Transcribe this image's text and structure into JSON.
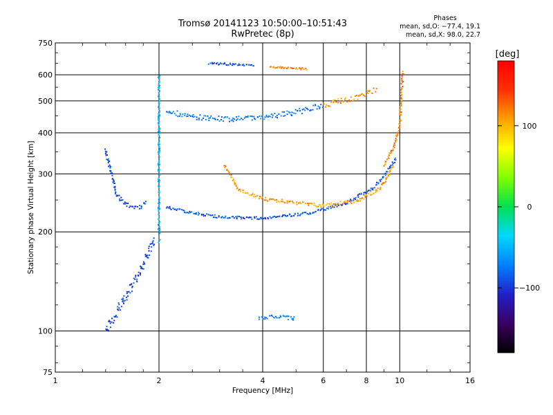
{
  "chart_data": {
    "type": "scatter",
    "title": "Tromsø 20141123 10:50:00–10:51:43",
    "subtitle": "RwPretec (8p)",
    "xlabel": "Frequency [MHz]",
    "ylabel": "Stationary phase Virtual Height [km]",
    "x_scale": "log",
    "y_scale": "log",
    "xlim": [
      1,
      16
    ],
    "ylim": [
      75,
      750
    ],
    "x_ticks": [
      1,
      2,
      4,
      6,
      8,
      10,
      16
    ],
    "x_tick_labels": [
      "1",
      "2",
      "4",
      "6",
      "8",
      "10",
      "16"
    ],
    "y_ticks": [
      75,
      100,
      200,
      300,
      400,
      500,
      600,
      750
    ],
    "y_tick_labels": [
      "75",
      "100",
      "200",
      "300",
      "400",
      "500",
      "600",
      "750"
    ],
    "grid": true,
    "phase_box": {
      "heading": "Phases",
      "line_o": "mean, sd,O: −77.4, 19.1",
      "line_x": "mean, sd,X:  98.0, 22.7"
    },
    "colorbar": {
      "label": "[deg]",
      "range": [
        -180,
        180
      ],
      "ticks": [
        100,
        0,
        -100
      ],
      "tick_labels": [
        "100",
        "0",
        "−100"
      ],
      "colors": [
        "#000000",
        "#3a0060",
        "#2020c8",
        "#0080ff",
        "#00d8ff",
        "#00e050",
        "#80ff00",
        "#ffff00",
        "#ffa000",
        "#ff3000",
        "#ff0000"
      ]
    },
    "traces": [
      {
        "x": [
          2.1,
          2.4,
          3.0,
          3.8,
          5.0,
          6.0
        ],
        "y": [
          465,
          450,
          440,
          442,
          462,
          485
        ],
        "phase": -75,
        "spread": 8
      },
      {
        "x": [
          6.0,
          6.8,
          7.8,
          8.6
        ],
        "y": [
          485,
          500,
          520,
          545
        ],
        "phase": 110,
        "spread": 8
      },
      {
        "x": [
          2.1,
          2.5,
          3.0,
          4.0,
          5.5,
          7.0,
          8.5,
          9.8
        ],
        "y": [
          238,
          228,
          222,
          220,
          228,
          245,
          275,
          335
        ],
        "phase": -90,
        "spread": 4
      },
      {
        "x": [
          3.1,
          3.4,
          4.0,
          5.0,
          6.0,
          7.5,
          8.8,
          9.6
        ],
        "y": [
          320,
          270,
          252,
          245,
          240,
          248,
          272,
          320
        ],
        "phase": 110,
        "spread": 5
      },
      {
        "x": [
          1.4,
          1.5,
          1.6,
          1.75,
          1.85
        ],
        "y": [
          355,
          262,
          242,
          236,
          248
        ],
        "phase": -95,
        "spread": 6
      },
      {
        "x": [
          2.0,
          2.0,
          2.0,
          2.0
        ],
        "y": [
          190,
          300,
          450,
          600
        ],
        "phase": -50,
        "spread": 10
      },
      {
        "x": [
          1.4,
          1.55,
          1.75,
          1.95
        ],
        "y": [
          100,
          120,
          150,
          190
        ],
        "phase": -95,
        "spread": 14
      },
      {
        "x": [
          9.0,
          9.6,
          10.0,
          10.2
        ],
        "y": [
          320,
          360,
          420,
          610
        ],
        "phase": 120,
        "spread": 6
      },
      {
        "x": [
          2.8,
          3.3,
          3.8
        ],
        "y": [
          650,
          645,
          640
        ],
        "phase": -90,
        "spread": 3
      },
      {
        "x": [
          4.2,
          4.8,
          5.4
        ],
        "y": [
          635,
          630,
          625
        ],
        "phase": 115,
        "spread": 3
      },
      {
        "x": [
          3.9,
          4.4,
          5.0
        ],
        "y": [
          110,
          110,
          109
        ],
        "phase": -70,
        "spread": 6
      }
    ]
  }
}
